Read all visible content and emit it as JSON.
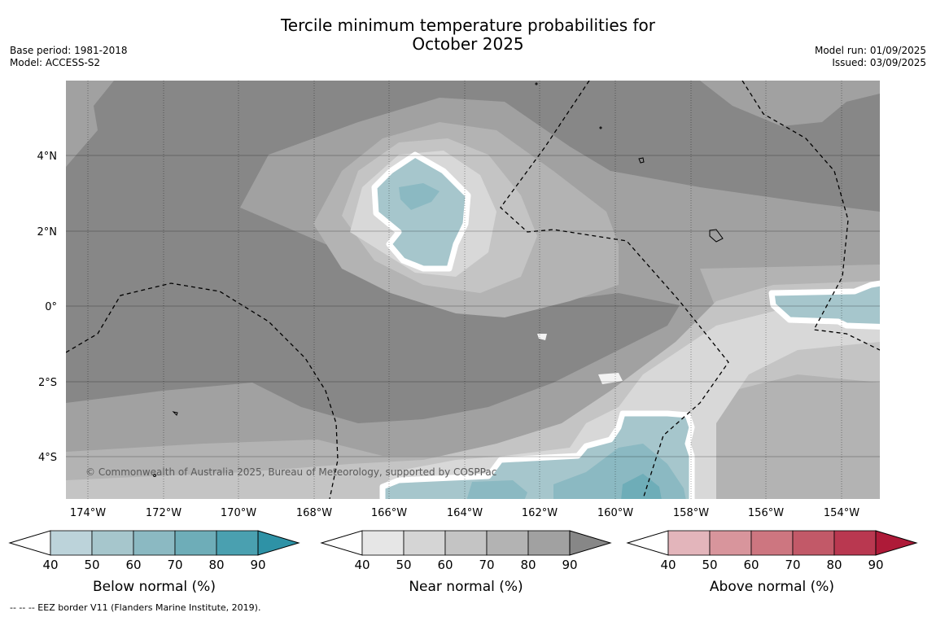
{
  "header": {
    "title_line1": "Tercile minimum temperature probabilities for",
    "title_line2": "October 2025",
    "base_period": "Base period: 1981-2018",
    "model": "Model: ACCESS-S2",
    "model_run": "Model run: 01/09/2025",
    "issued": "Issued: 03/09/2025"
  },
  "map": {
    "lat_labels": [
      "4°N",
      "2°N",
      "0°",
      "2°S",
      "4°S"
    ],
    "lon_labels": [
      "174°W",
      "172°W",
      "170°W",
      "168°W",
      "166°W",
      "164°W",
      "162°W",
      "160°W",
      "158°W",
      "156°W",
      "154°W"
    ],
    "copyright": "© Commonwealth of Australia 2025, Bureau of Meteorology, supported by COSPPac"
  },
  "legends": [
    {
      "title": "Below normal (%)",
      "ticks": [
        "40",
        "50",
        "60",
        "70",
        "80",
        "90"
      ],
      "colors": [
        "#bcd3da",
        "#a6c6cc",
        "#8bb9c2",
        "#6eadb8",
        "#4aa0b0",
        "#2e92a6"
      ]
    },
    {
      "title": "Near normal (%)",
      "ticks": [
        "40",
        "50",
        "60",
        "70",
        "80",
        "90"
      ],
      "colors": [
        "#e6e6e6",
        "#d5d5d5",
        "#c4c4c4",
        "#b3b3b3",
        "#a1a1a1",
        "#878787"
      ]
    },
    {
      "title": "Above normal (%)",
      "ticks": [
        "40",
        "50",
        "60",
        "70",
        "80",
        "90"
      ],
      "colors": [
        "#e3b5bb",
        "#d8959c",
        "#cd7680",
        "#c25968",
        "#b93850",
        "#ae1a38"
      ]
    }
  ],
  "footer": {
    "eez_note": "--  --  -- EEZ border V11 (Flanders Marine Institute, 2019)."
  }
}
